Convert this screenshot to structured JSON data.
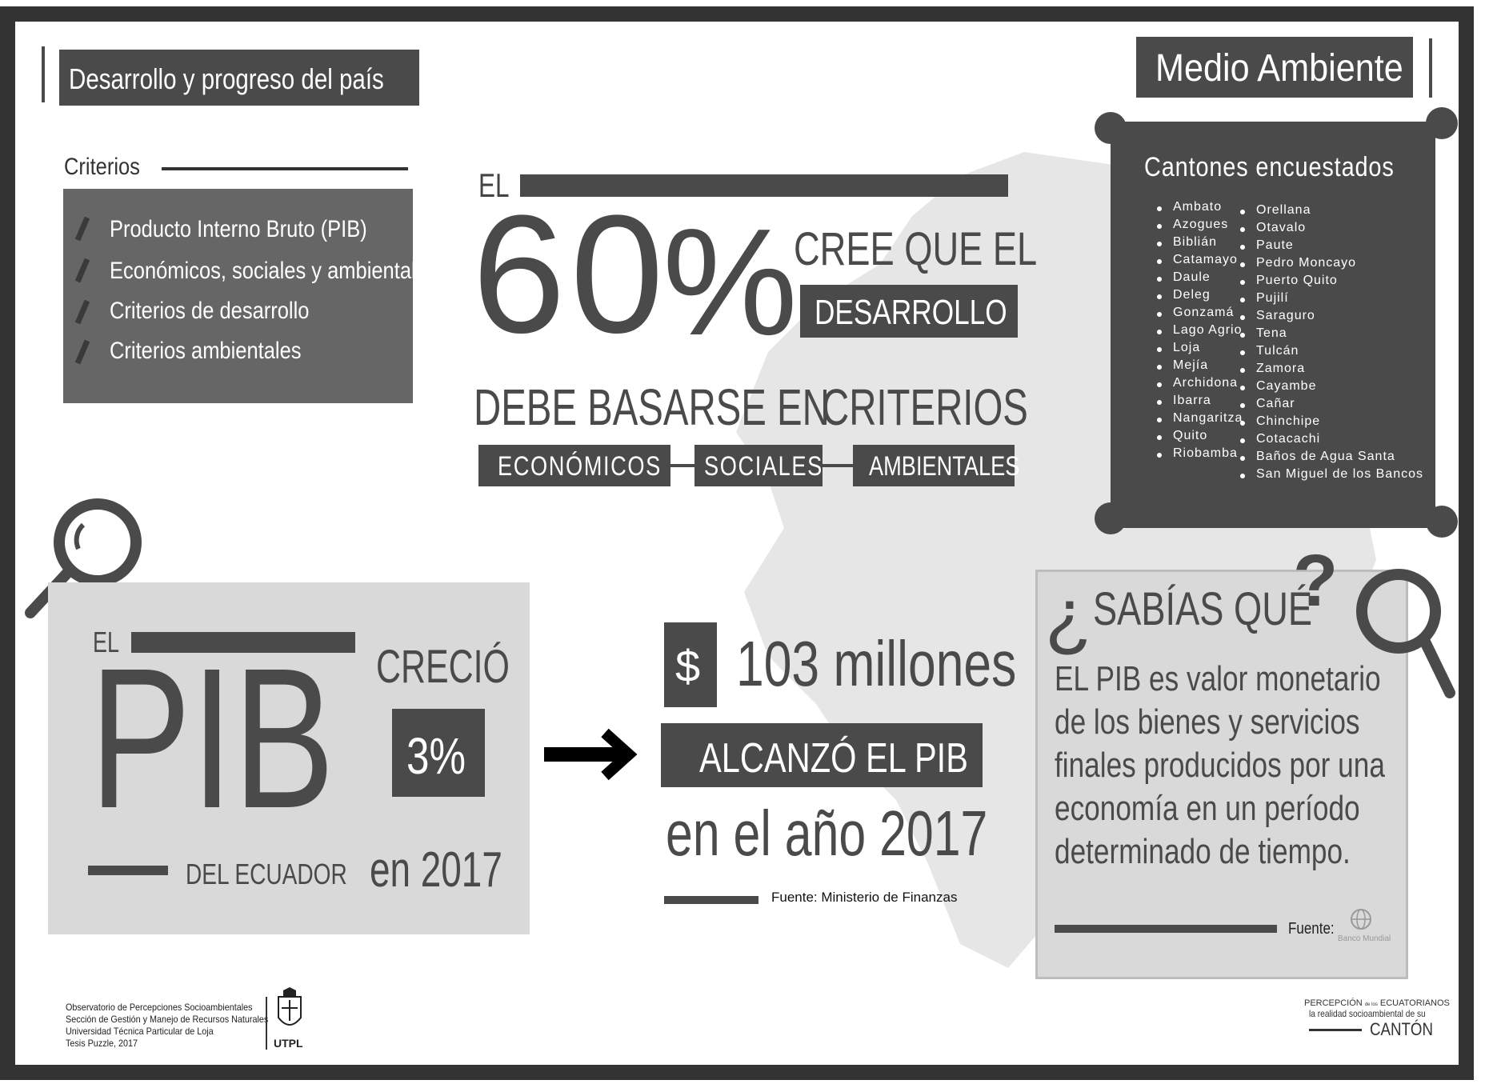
{
  "header": {
    "left_title": "Desarrollo y progreso del país",
    "right_title": "Medio Ambiente"
  },
  "criterios": {
    "heading": "Criterios",
    "items": [
      "Producto Interno Bruto (PIB)",
      "Económicos, sociales y ambientales",
      "Criterios de desarrollo",
      "Criterios ambientales"
    ]
  },
  "center_stat": {
    "el": "EL",
    "percent_number": "60",
    "percent_sign": "%",
    "cree": "CREE QUE EL",
    "desarrollo": "DESARROLLO",
    "debe": "DEBE BASARSE EN",
    "criterios": "CRITERIOS",
    "tags": [
      "ECONÓMICOS",
      "SOCIALES",
      "AMBIENTALES"
    ]
  },
  "cantones": {
    "title": "Cantones encuestados",
    "col1": [
      "Ambato",
      "Azogues",
      "Biblián",
      "Catamayo",
      "Daule",
      "Deleg",
      "Gonzamá",
      "Lago Agrio",
      "Loja",
      "Mejía",
      "Archidona",
      "Ibarra",
      "Nangaritza",
      "Quito",
      "Riobamba"
    ],
    "col2": [
      "Orellana",
      "Otavalo",
      "Paute",
      "Pedro Moncayo",
      "Puerto Quito",
      "Pujilí",
      "Saraguro",
      "Tena",
      "Tulcán",
      "Zamora",
      "Cayambe",
      "Cañar",
      "Chinchipe",
      "Cotacachi",
      "Baños de Agua Santa",
      "San Miguel de los Bancos"
    ]
  },
  "pib_box": {
    "el": "EL",
    "pib": "PIB",
    "del_ecuador": "DEL ECUADOR",
    "crecio": "CRECIÓ",
    "percent": "3%",
    "year": "en 2017"
  },
  "millones": {
    "dollar": "$",
    "amount": "103 millones",
    "alcanzo": "ALCANZÓ EL PIB",
    "year": "en el año 2017",
    "fuente": "Fuente: Ministerio de Finanzas"
  },
  "sabias": {
    "open_q": "¿",
    "title": "SABÍAS QUÉ",
    "close_q": "?",
    "text_lines": [
      "EL PIB es valor monetario",
      "de los bienes y servicios",
      "finales producidos por una",
      "economía en un período",
      "determinado de tiempo."
    ],
    "fuente": "Fuente:",
    "logo_text": "Banco Mundial"
  },
  "footer": {
    "lines": [
      "Observatorio de Percepciones Socioambientales",
      "Sección de Gestión y Manejo de Recursos Naturales",
      "Universidad Técnica Particular de Loja",
      "Tesis Puzzle, 2017"
    ],
    "utpl": "UTPL",
    "right_line1": "PERCEPCIÓN",
    "right_small": "de los",
    "right_line1b": "ECUATORIANOS",
    "right_line2": "la realidad socioambiental de su",
    "right_line3": "CANTÓN"
  }
}
